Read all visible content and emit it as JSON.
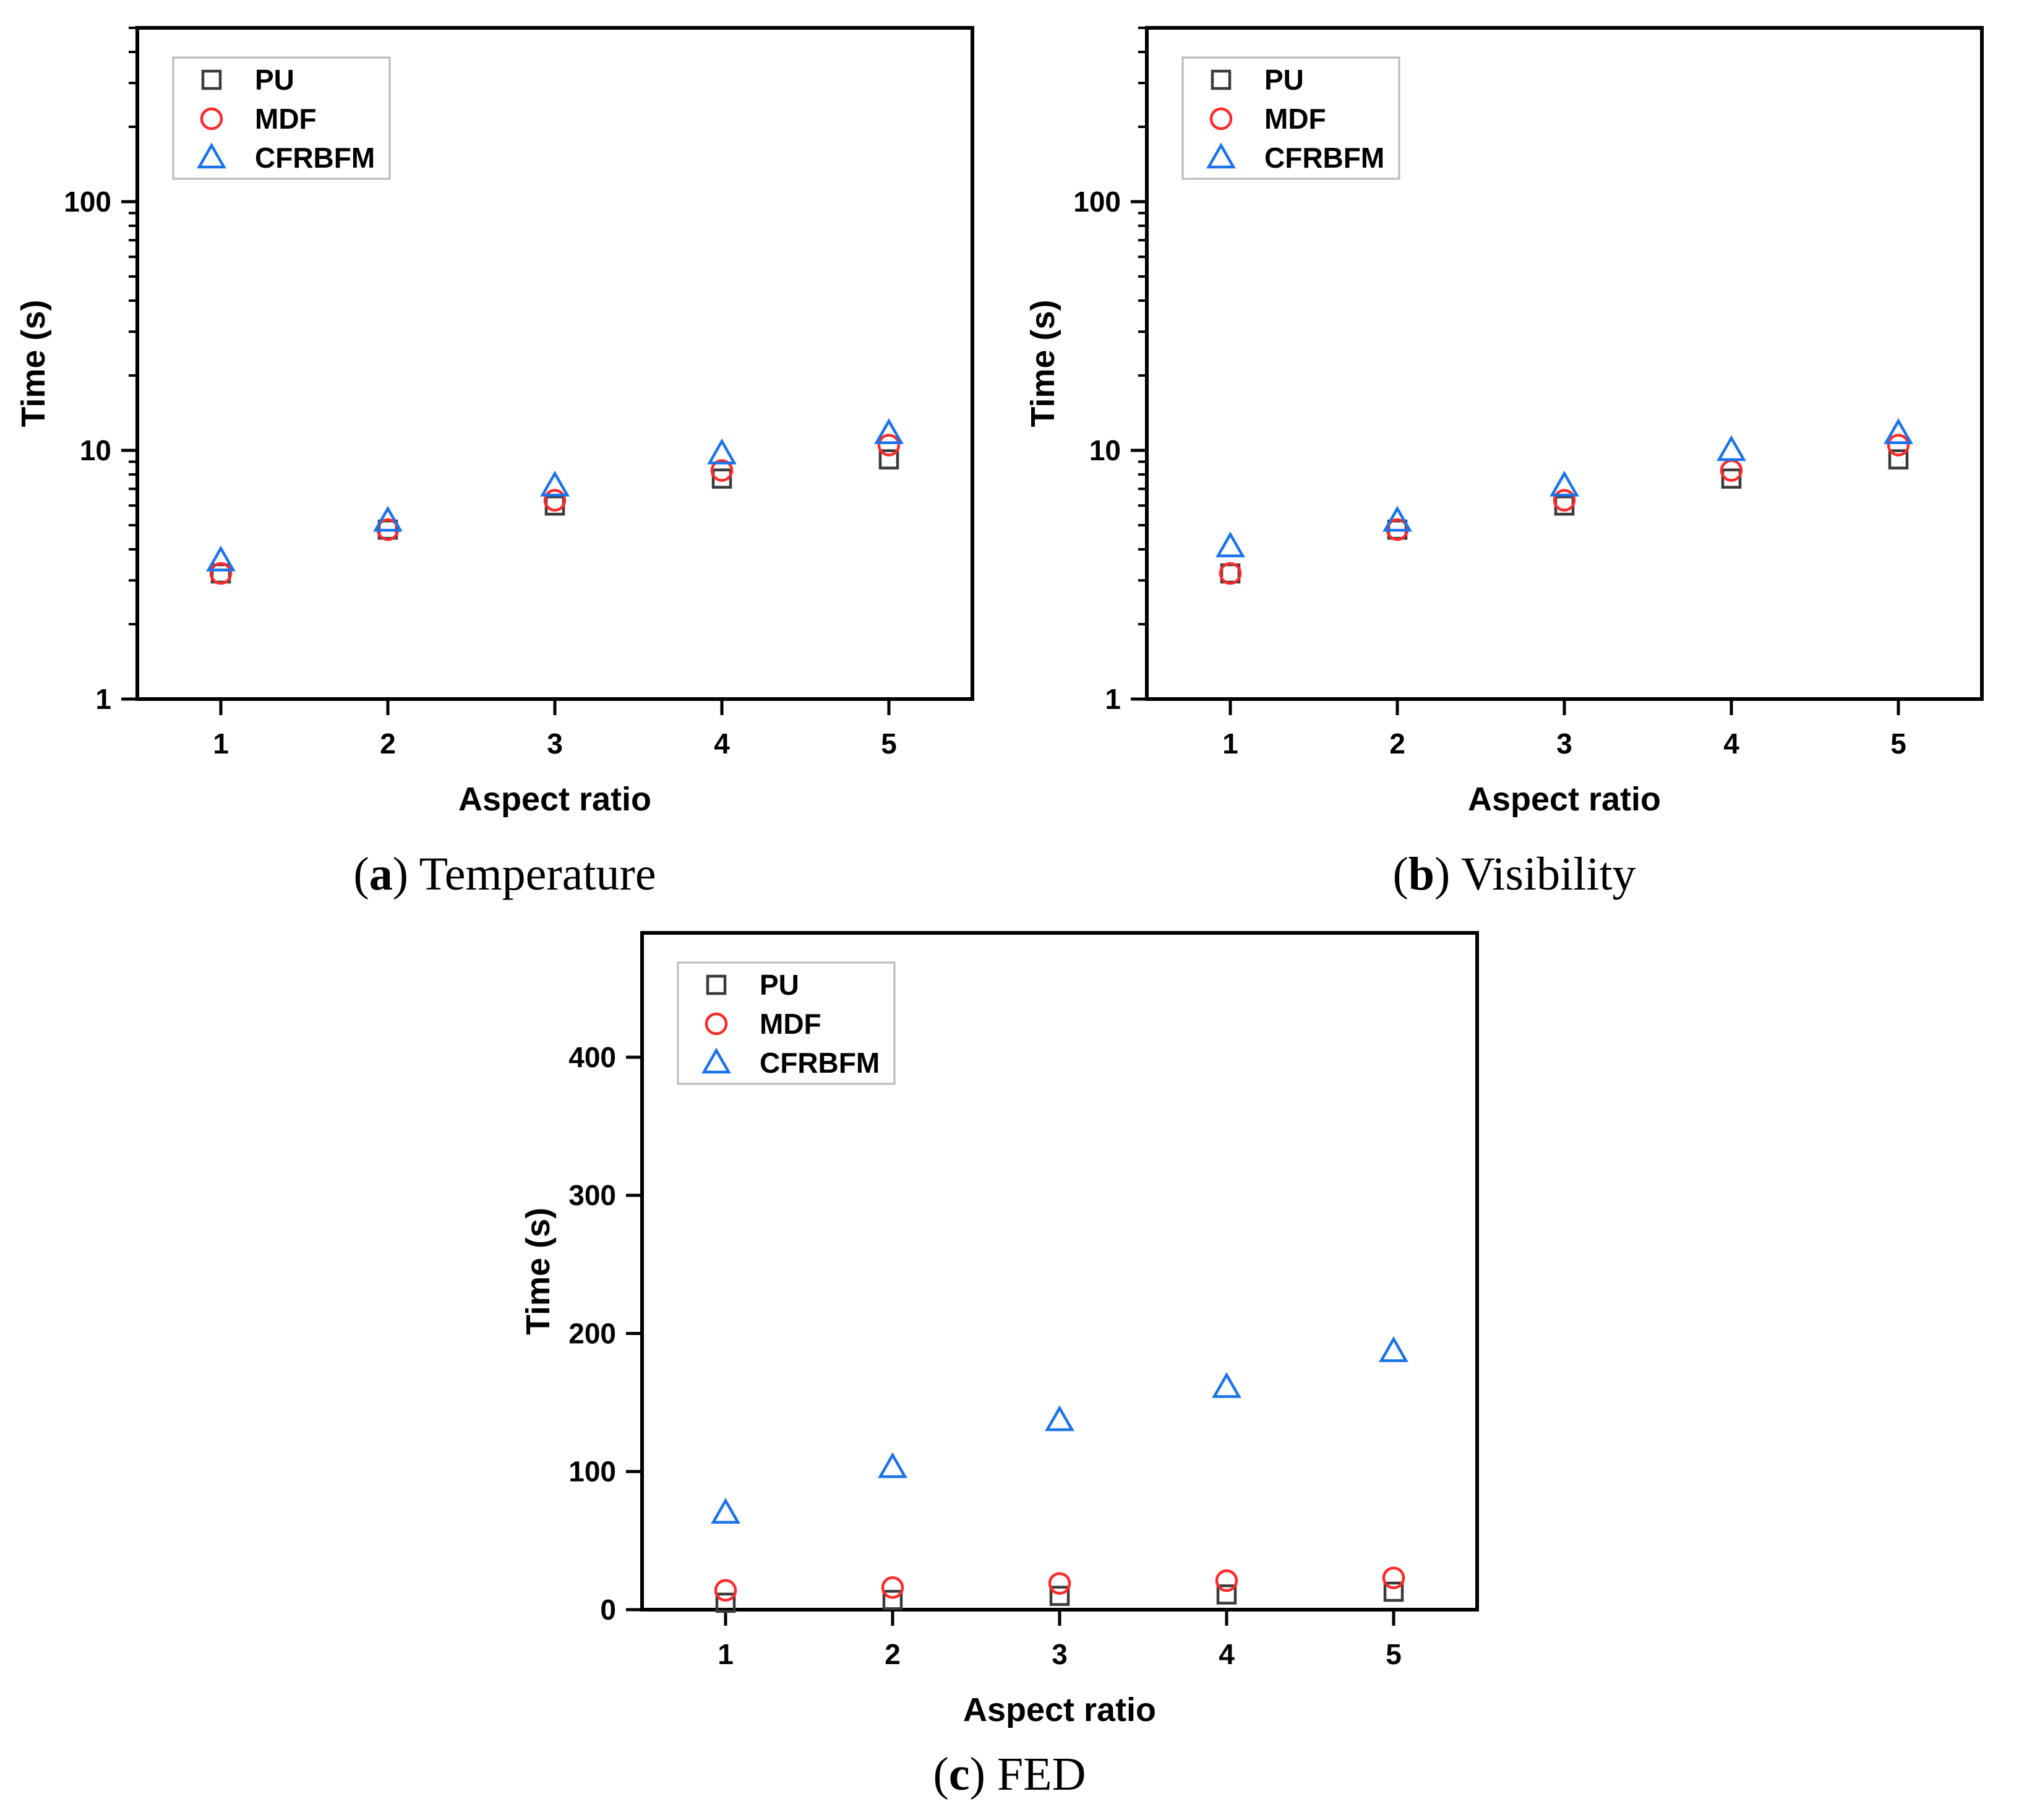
{
  "colors": {
    "PU": "#3a3a3a",
    "MDF": "#ff2a2a",
    "CFRBFM": "#1a73e8"
  },
  "chart_data": [
    {
      "id": "a",
      "type": "scatter",
      "caption": {
        "letter": "a",
        "text": "Temperature"
      },
      "xlabel": "Aspect ratio",
      "ylabel": "Time (s)",
      "yscale": "log",
      "ylim": [
        1,
        500
      ],
      "xlim": [
        0.5,
        5.5
      ],
      "x": [
        1,
        2,
        3,
        4,
        5
      ],
      "xticks": [
        1,
        2,
        3,
        4,
        5
      ],
      "yticks": [
        1,
        10,
        100
      ],
      "legend": "top-left",
      "series": [
        {
          "name": "PU",
          "marker": "square",
          "values": [
            3.2,
            4.8,
            6.0,
            7.7,
            9.2
          ]
        },
        {
          "name": "MDF",
          "marker": "circle",
          "values": [
            3.2,
            4.8,
            6.3,
            8.3,
            10.5
          ]
        },
        {
          "name": "CFRBFM",
          "marker": "triangle",
          "values": [
            3.6,
            5.2,
            7.2,
            9.7,
            11.7
          ]
        }
      ]
    },
    {
      "id": "b",
      "type": "scatter",
      "caption": {
        "letter": "b",
        "text": "Visibility"
      },
      "xlabel": "Aspect ratio",
      "ylabel": "Time (s)",
      "yscale": "log",
      "ylim": [
        1,
        500
      ],
      "xlim": [
        0.5,
        5.5
      ],
      "x": [
        1,
        2,
        3,
        4,
        5
      ],
      "xticks": [
        1,
        2,
        3,
        4,
        5
      ],
      "yticks": [
        1,
        10,
        100
      ],
      "legend": "top-left",
      "series": [
        {
          "name": "PU",
          "marker": "square",
          "values": [
            3.2,
            4.8,
            6.0,
            7.7,
            9.2
          ]
        },
        {
          "name": "MDF",
          "marker": "circle",
          "values": [
            3.2,
            4.8,
            6.3,
            8.3,
            10.5
          ]
        },
        {
          "name": "CFRBFM",
          "marker": "triangle",
          "values": [
            4.1,
            5.2,
            7.2,
            10.0,
            11.7
          ]
        }
      ]
    },
    {
      "id": "c",
      "type": "scatter",
      "caption": {
        "letter": "c",
        "text": "FED"
      },
      "xlabel": "Aspect ratio",
      "ylabel": "Time (s)",
      "yscale": "linear",
      "ylim": [
        0,
        490
      ],
      "xlim": [
        0.5,
        5.5
      ],
      "x": [
        1,
        2,
        3,
        4,
        5
      ],
      "xticks": [
        1,
        2,
        3,
        4,
        5
      ],
      "yticks": [
        0,
        100,
        200,
        300,
        400
      ],
      "legend": "top-left",
      "series": [
        {
          "name": "PU",
          "marker": "square",
          "values": [
            5,
            7,
            10,
            11,
            13
          ]
        },
        {
          "name": "MDF",
          "marker": "circle",
          "values": [
            14,
            16,
            19,
            21,
            23
          ]
        },
        {
          "name": "CFRBFM",
          "marker": "triangle",
          "values": [
            70,
            103,
            137,
            161,
            187
          ]
        }
      ]
    }
  ]
}
